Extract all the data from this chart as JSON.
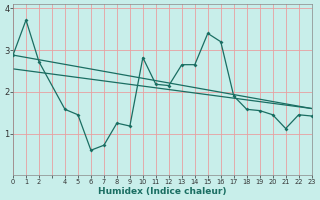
{
  "xlabel": "Humidex (Indice chaleur)",
  "background_color": "#c8eeea",
  "grid_color": "#e8a0a0",
  "line_color": "#1a6e62",
  "xlim": [
    0,
    23
  ],
  "ylim": [
    0,
    4.1
  ],
  "xticks": [
    0,
    1,
    2,
    3,
    4,
    5,
    6,
    7,
    8,
    9,
    10,
    11,
    12,
    13,
    14,
    15,
    16,
    17,
    18,
    19,
    20,
    21,
    22,
    23
  ],
  "xtick_labels": [
    "0",
    "1",
    "2",
    "",
    "4",
    "5",
    "6",
    "7",
    "8",
    "9",
    "10",
    "11",
    "12",
    "13",
    "14",
    "15",
    "16",
    "17",
    "18",
    "19",
    "20",
    "21",
    "22",
    "23"
  ],
  "yticks": [
    1,
    2,
    3,
    4
  ],
  "jagged_x": [
    0,
    1,
    2,
    4,
    5,
    6,
    7,
    8,
    9,
    10,
    11,
    12,
    13,
    14,
    15,
    16,
    17,
    18,
    19,
    20,
    21,
    22,
    23
  ],
  "jagged_y": [
    2.88,
    3.72,
    2.72,
    1.58,
    1.45,
    0.6,
    0.72,
    1.25,
    1.18,
    2.82,
    2.18,
    2.15,
    2.65,
    2.65,
    3.4,
    3.2,
    1.9,
    1.58,
    1.55,
    1.45,
    1.12,
    1.45,
    1.42
  ],
  "trend1_x": [
    0,
    23
  ],
  "trend1_y": [
    2.88,
    1.6
  ],
  "trend2_x": [
    0,
    23
  ],
  "trend2_y": [
    2.55,
    1.6
  ]
}
